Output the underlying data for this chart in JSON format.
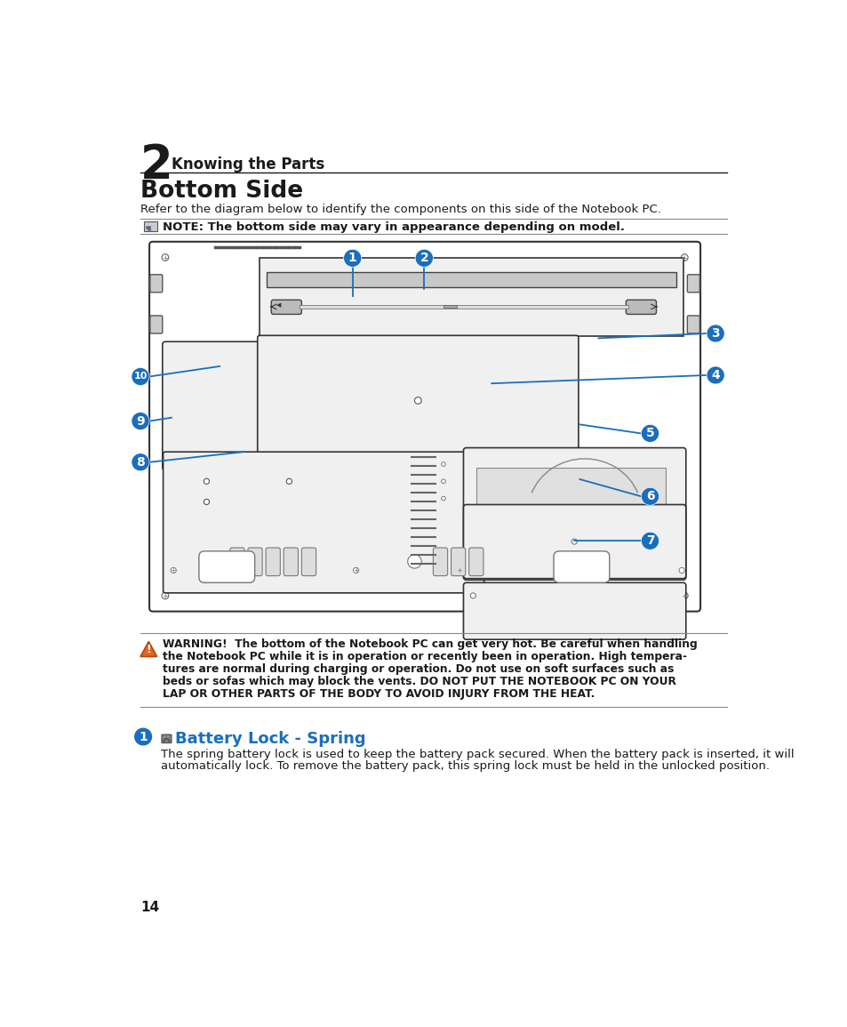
{
  "bg_color": "#ffffff",
  "chapter_num": "2",
  "chapter_title": "Knowing the Parts",
  "section_title": "Bottom Side",
  "section_subtitle": "Refer to the diagram below to identify the components on this side of the Notebook PC.",
  "note_text": "NOTE: The bottom side may vary in appearance depending on model.",
  "warning_text": "WARNING!  The bottom of the Notebook PC can get very hot. Be careful when handling\nthe Notebook PC while it is in operation or recently been in operation. High tempera-\ntures are normal during charging or operation. Do not use on soft surfaces such as\nbeds or sofas which may block the vents. DO NOT PUT THE NOTEBOOK PC ON YOUR\nLAP OR OTHER PARTS OF THE BODY TO AVOID INJURY FROM THE HEAT.",
  "item1_title": "Battery Lock - Spring",
  "item1_text": "The spring battery lock is used to keep the battery pack secured. When the battery pack is inserted, it will\nautomatically lock. To remove the battery pack, this spring lock must be held in the unlocked position.",
  "page_num": "14",
  "blue_color": "#1a6ebd",
  "dark_color": "#1a1a1a",
  "gray_color": "#888888",
  "light_gray": "#f0f0f0",
  "line_color": "#333333"
}
